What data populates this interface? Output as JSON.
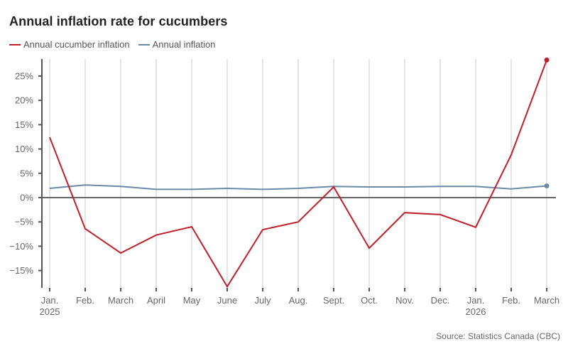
{
  "chart_data": {
    "type": "line",
    "title": "Annual inflation rate for cucumbers",
    "xlabel": "",
    "ylabel": "",
    "ylim": [
      -18.5,
      28.5
    ],
    "yticks": [
      25,
      20,
      15,
      10,
      5,
      0,
      -5,
      -10,
      -15
    ],
    "ytick_labels": [
      "25%",
      "20%",
      "15%",
      "10%",
      "5%",
      "0%",
      "−5%",
      "−10%",
      "−15%"
    ],
    "categories": [
      "Jan.",
      "Feb.",
      "March",
      "April",
      "May",
      "June",
      "July",
      "Aug.",
      "Sept.",
      "Oct.",
      "Nov.",
      "Dec.",
      "Jan.",
      "Feb.",
      "March"
    ],
    "year_labels": [
      {
        "index": 0,
        "label": "2025"
      },
      {
        "index": 12,
        "label": "2026"
      }
    ],
    "grid": "vertical",
    "legend_position": "top-left",
    "series": [
      {
        "name": "Annual cucumber inflation",
        "color": "#c0202a",
        "values": [
          12.4,
          -6.4,
          -11.4,
          -7.7,
          -6.0,
          -18.3,
          -6.6,
          -5.0,
          2.2,
          -10.4,
          -3.1,
          -3.5,
          -6.1,
          8.8,
          28.3
        ],
        "end_marker": true
      },
      {
        "name": "Annual inflation",
        "color": "#6b8aa5",
        "values": [
          1.9,
          2.6,
          2.3,
          1.7,
          1.7,
          1.9,
          1.7,
          1.9,
          2.3,
          2.2,
          2.2,
          2.3,
          2.3,
          1.8,
          2.4
        ],
        "end_marker": true
      }
    ]
  },
  "source": "Source: Statistics Canada (CBC)"
}
